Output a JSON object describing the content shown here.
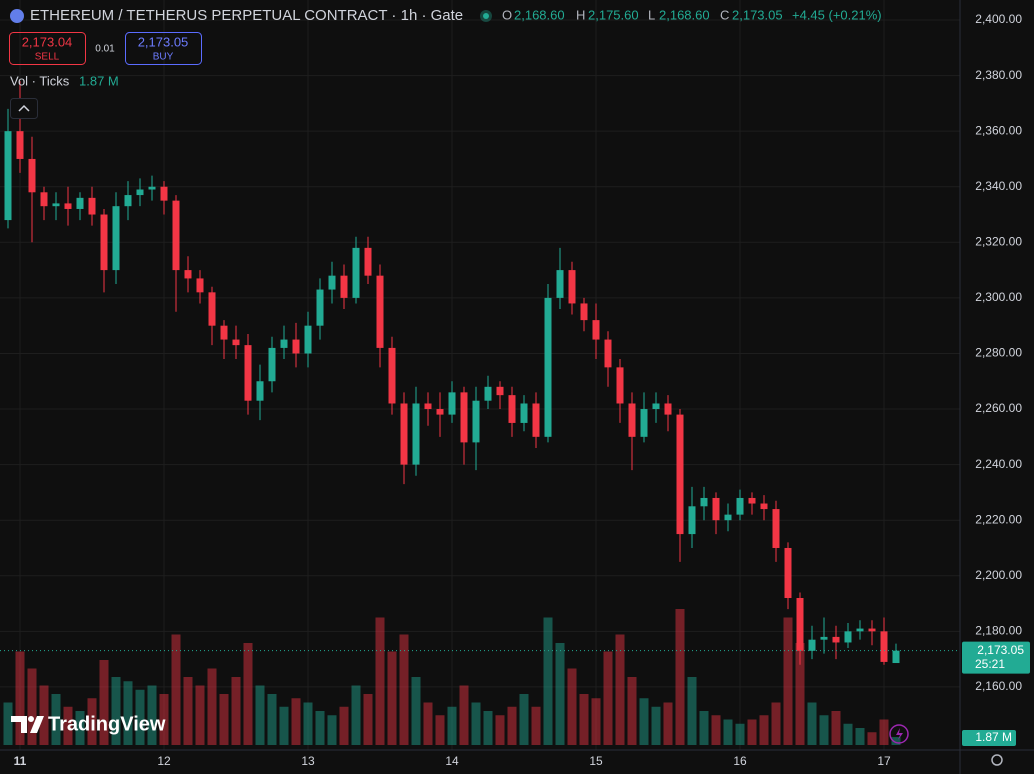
{
  "header": {
    "title": "ETHEREUM / TETHERUS PERPETUAL CONTRACT · 1h · Gate",
    "o_label": "O",
    "o_value": "2,168.60",
    "h_label": "H",
    "h_value": "2,175.60",
    "l_label": "L",
    "l_value": "2,168.60",
    "c_label": "C",
    "c_value": "2,173.05",
    "change": "+4.45 (+0.21%)",
    "sell_price": "2,173.04",
    "sell_label": "SELL",
    "spread": "0.01",
    "buy_price": "2,173.05",
    "buy_label": "BUY",
    "volume_legend": "Vol · Ticks",
    "volume_legend_value": "1.87 M",
    "logo": "TradingView"
  },
  "chart_data": {
    "type": "candlestick",
    "up_color": "#22ab94",
    "down_color": "#f23645",
    "grid": true,
    "categories": [
      null,
      "11",
      null,
      null,
      null,
      null,
      null,
      null,
      null,
      null,
      null,
      null,
      null,
      "12",
      null,
      null,
      null,
      null,
      null,
      null,
      null,
      null,
      null,
      null,
      null,
      "13",
      null,
      null,
      null,
      null,
      null,
      null,
      null,
      null,
      null,
      null,
      null,
      "14",
      null,
      null,
      null,
      null,
      null,
      null,
      null,
      null,
      null,
      null,
      null,
      "15",
      null,
      null,
      null,
      null,
      null,
      null,
      null,
      null,
      null,
      null,
      null,
      "16",
      null,
      null,
      null,
      null,
      null,
      null,
      null,
      null,
      null,
      null,
      null,
      "17",
      null
    ],
    "open": [
      2328,
      2360,
      2350,
      2338,
      2333,
      2334,
      2332,
      2336,
      2330,
      2310,
      2333,
      2337,
      2339,
      2340,
      2335,
      2310,
      2307,
      2302,
      2290,
      2285,
      2283,
      2263,
      2270,
      2282,
      2285,
      2280,
      2290,
      2303,
      2308,
      2300,
      2318,
      2308,
      2282,
      2262,
      2240,
      2262,
      2260,
      2258,
      2266,
      2248,
      2263,
      2268,
      2265,
      2255,
      2262,
      2250,
      2300,
      2310,
      2298,
      2292,
      2285,
      2275,
      2262,
      2250,
      2260,
      2262,
      2258,
      2215,
      2225,
      2228,
      2220,
      2222,
      2228,
      2226,
      2224,
      2210,
      2192,
      2173,
      2177,
      2178,
      2176,
      2180,
      2181,
      2180,
      2168.6
    ],
    "high": [
      2368,
      2378,
      2358,
      2340,
      2338,
      2340,
      2338,
      2340,
      2332,
      2338,
      2342,
      2343,
      2344,
      2342,
      2337,
      2315,
      2310,
      2304,
      2292,
      2290,
      2287,
      2276,
      2286,
      2290,
      2291,
      2295,
      2307,
      2313,
      2312,
      2322,
      2322,
      2312,
      2286,
      2266,
      2268,
      2266,
      2266,
      2270,
      2268,
      2268,
      2272,
      2270,
      2268,
      2265,
      2266,
      2305,
      2318,
      2313,
      2300,
      2298,
      2288,
      2278,
      2266,
      2266,
      2266,
      2265,
      2260,
      2232,
      2232,
      2230,
      2226,
      2231,
      2230,
      2229,
      2227,
      2212,
      2194,
      2182,
      2185,
      2182,
      2183,
      2184,
      2184,
      2185,
      2175.6
    ],
    "low": [
      2325,
      2345,
      2320,
      2328,
      2328,
      2326,
      2328,
      2326,
      2302,
      2305,
      2328,
      2333,
      2335,
      2330,
      2295,
      2302,
      2298,
      2283,
      2278,
      2278,
      2258,
      2256,
      2266,
      2278,
      2275,
      2275,
      2285,
      2298,
      2296,
      2298,
      2305,
      2275,
      2258,
      2233,
      2236,
      2254,
      2250,
      2255,
      2240,
      2238,
      2260,
      2260,
      2250,
      2252,
      2246,
      2248,
      2296,
      2294,
      2288,
      2278,
      2268,
      2255,
      2238,
      2248,
      2255,
      2252,
      2205,
      2210,
      2220,
      2215,
      2216,
      2220,
      2222,
      2220,
      2205,
      2188,
      2168,
      2170,
      2172,
      2170,
      2174,
      2177,
      2175,
      2168,
      2168.6
    ],
    "close": [
      2360,
      2350,
      2338,
      2333,
      2334,
      2332,
      2336,
      2330,
      2310,
      2333,
      2337,
      2339,
      2340,
      2335,
      2310,
      2307,
      2302,
      2290,
      2285,
      2283,
      2263,
      2270,
      2282,
      2285,
      2280,
      2290,
      2303,
      2308,
      2300,
      2318,
      2308,
      2282,
      2262,
      2240,
      2262,
      2260,
      2258,
      2266,
      2248,
      2263,
      2268,
      2265,
      2255,
      2262,
      2250,
      2300,
      2310,
      2298,
      2292,
      2285,
      2275,
      2262,
      2250,
      2260,
      2262,
      2258,
      2215,
      2225,
      2228,
      2220,
      2222,
      2228,
      2226,
      2224,
      2210,
      2192,
      2173,
      2177,
      2178,
      2176,
      2180,
      2181,
      2180,
      2169,
      2173.05
    ],
    "volume": [
      10,
      22,
      18,
      14,
      12,
      9,
      8,
      11,
      20,
      16,
      15,
      13,
      14,
      12,
      26,
      16,
      14,
      18,
      12,
      16,
      24,
      14,
      12,
      9,
      11,
      10,
      8,
      7,
      9,
      14,
      12,
      30,
      22,
      26,
      16,
      10,
      7,
      9,
      14,
      10,
      8,
      7,
      9,
      12,
      9,
      30,
      24,
      18,
      12,
      11,
      22,
      26,
      16,
      11,
      9,
      10,
      32,
      16,
      8,
      7,
      6,
      5,
      6,
      7,
      10,
      30,
      24,
      10,
      7,
      8,
      5,
      4,
      3,
      6,
      1.87
    ],
    "volume_ylim": [
      0,
      40
    ],
    "volume_value_label": "1.87 M",
    "ylim": [
      2137.3,
      2407.2
    ],
    "yticks": [
      {
        "value": 2160,
        "label": "2,160.00"
      },
      {
        "value": 2180,
        "label": "2,180.00"
      },
      {
        "value": 2200,
        "label": "2,200.00"
      },
      {
        "value": 2220,
        "label": "2,220.00"
      },
      {
        "value": 2240,
        "label": "2,240.00"
      },
      {
        "value": 2260,
        "label": "2,260.00"
      },
      {
        "value": 2280,
        "label": "2,280.00"
      },
      {
        "value": 2300,
        "label": "2,300.00"
      },
      {
        "value": 2320,
        "label": "2,320.00"
      },
      {
        "value": 2340,
        "label": "2,340.00"
      },
      {
        "value": 2360,
        "label": "2,360.00"
      },
      {
        "value": 2380,
        "label": "2,380.00"
      },
      {
        "value": 2400,
        "label": "2,400.00"
      }
    ],
    "last_price": {
      "value": 2173.05,
      "label": "2,173.05"
    },
    "countdown": "25:21"
  }
}
